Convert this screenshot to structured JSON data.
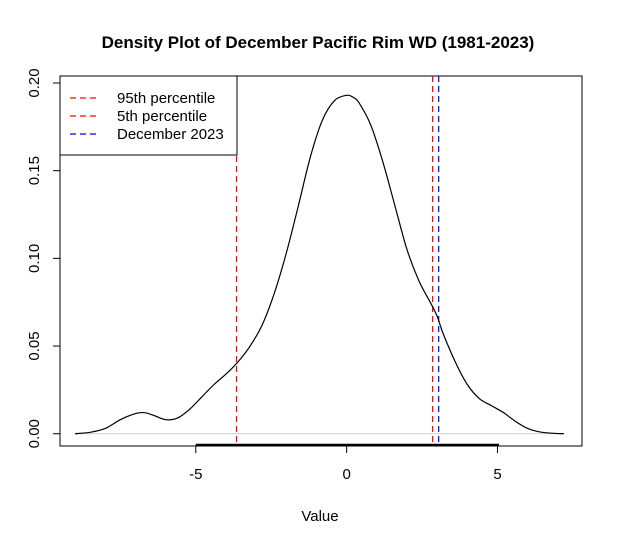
{
  "chart_data": {
    "type": "line",
    "title": "Density Plot of December Pacific Rim WD (1981-2023)",
    "xlabel": "Value",
    "ylabel": "",
    "xlim": [
      -9.5,
      7.8
    ],
    "ylim": [
      -0.007,
      0.204
    ],
    "x_ticks": [
      -5,
      0,
      5
    ],
    "x_tick_labels": [
      "-5",
      "0",
      "5"
    ],
    "y_ticks": [
      0.0,
      0.05,
      0.1,
      0.15,
      0.2
    ],
    "y_tick_labels": [
      "0.00",
      "0.05",
      "0.10",
      "0.15",
      "0.20"
    ],
    "grid": false,
    "legend_position": "top-left",
    "series": [
      {
        "color": "#000000",
        "x": [
          -9.0,
          -8.5,
          -8.0,
          -7.5,
          -7.0,
          -6.7,
          -6.4,
          -6.0,
          -5.6,
          -5.2,
          -4.8,
          -4.4,
          -4.0,
          -3.6,
          -3.2,
          -2.8,
          -2.4,
          -2.0,
          -1.6,
          -1.2,
          -0.8,
          -0.4,
          0.0,
          0.2,
          0.4,
          0.8,
          1.2,
          1.6,
          2.0,
          2.4,
          2.8,
          3.0,
          3.2,
          3.6,
          4.0,
          4.4,
          4.8,
          5.2,
          5.6,
          6.0,
          6.4,
          6.8,
          7.2
        ],
        "values": [
          0.0,
          0.0008,
          0.003,
          0.008,
          0.0115,
          0.012,
          0.0105,
          0.008,
          0.009,
          0.014,
          0.021,
          0.028,
          0.034,
          0.041,
          0.05,
          0.062,
          0.08,
          0.103,
          0.13,
          0.158,
          0.179,
          0.19,
          0.193,
          0.192,
          0.189,
          0.176,
          0.155,
          0.13,
          0.105,
          0.087,
          0.074,
          0.067,
          0.057,
          0.041,
          0.028,
          0.02,
          0.016,
          0.012,
          0.007,
          0.003,
          0.001,
          0.0003,
          0.0
        ]
      }
    ],
    "vlines": [
      {
        "label": "95th percentile",
        "x": -3.65,
        "color": "#ff0000",
        "style": "dashed"
      },
      {
        "label": "5th percentile",
        "x": 2.85,
        "color": "#ff0000",
        "style": "dashed"
      },
      {
        "label": "December 2023",
        "x": 3.05,
        "color": "#0000ff",
        "style": "dashed"
      }
    ],
    "baseline": {
      "y": 0,
      "color": "#d0d0d0"
    },
    "rug_color": "#000000"
  }
}
